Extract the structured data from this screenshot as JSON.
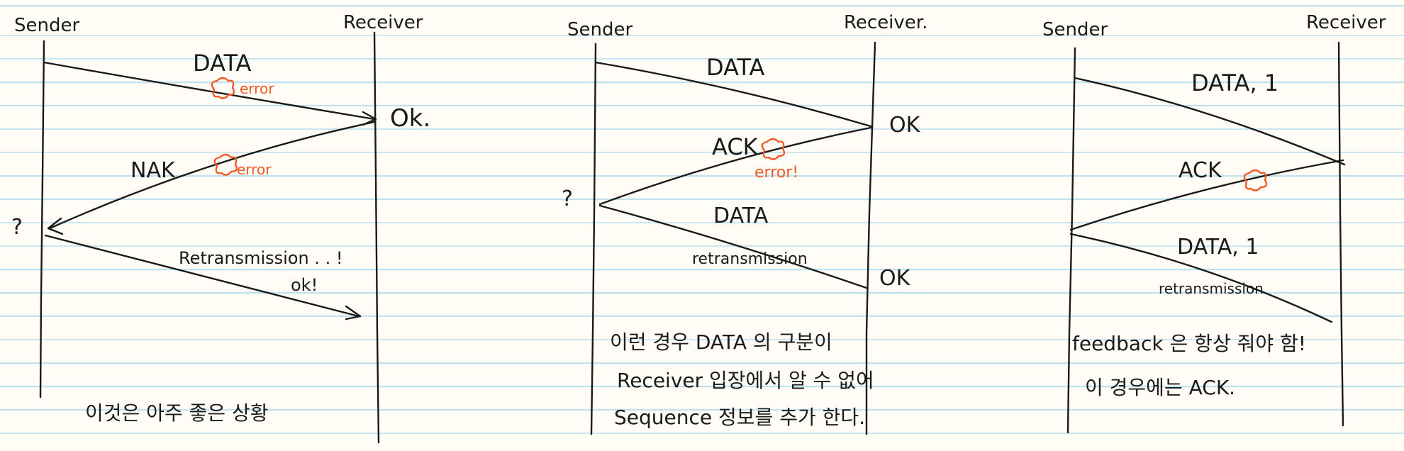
{
  "panels": [
    {
      "sender": "Sender",
      "receiver": "Receiver",
      "data": "DATA",
      "error1": "error",
      "ok": "Ok.",
      "nak": "NAK",
      "error2": "error",
      "question": "?",
      "retransmission": "Retransmission . . !",
      "ok2": "ok!",
      "note": "이것은  아주 좋은 상황"
    },
    {
      "sender": "Sender",
      "receiver": "Receiver.",
      "data": "DATA",
      "ok": "OK",
      "ack": "ACK",
      "error": "error!",
      "question": "?",
      "data2": "DATA",
      "retransmission": "retransmission",
      "ok2": "OK",
      "note_lines": [
        "이런 경우   DATA 의  구분이",
        "Receiver 입장에서  알 수 없어",
        "Sequence  정보를 추가 한다."
      ]
    },
    {
      "sender": "Sender",
      "receiver": "Receiver",
      "data": "DATA, 1",
      "ack": "ACK",
      "data2": "DATA, 1",
      "retransmission": "retransmission",
      "note_lines": [
        "feedback 은  항상 줘야 함!",
        "이 경우에는   ACK."
      ]
    }
  ]
}
